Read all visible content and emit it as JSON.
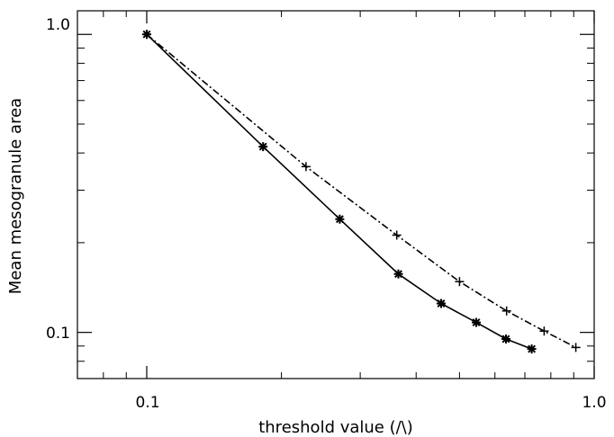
{
  "chart_data": {
    "type": "line",
    "xlabel": "threshold value (/\\)",
    "ylabel": "Mean mesogranule area",
    "xscale": "log",
    "yscale": "log",
    "xlim": [
      0.07,
      1.0
    ],
    "ylim": [
      0.07,
      1.2
    ],
    "x_ticks": [
      {
        "value": 0.1,
        "label": "0.1"
      },
      {
        "value": 1.0,
        "label": "1.0"
      }
    ],
    "y_ticks": [
      {
        "value": 0.1,
        "label": "0.1"
      },
      {
        "value": 1.0,
        "label": "1.0"
      }
    ],
    "grid": false,
    "series": [
      {
        "line_style": "solid",
        "marker": "asterisk",
        "color": "#000000",
        "x": [
          0.1,
          0.182,
          0.27,
          0.365,
          0.455,
          0.545,
          0.635,
          0.725
        ],
        "y": [
          1.0,
          0.42,
          0.24,
          0.157,
          0.125,
          0.108,
          0.095,
          0.088
        ]
      },
      {
        "line_style": "dash-dot",
        "marker": "plus",
        "color": "#000000",
        "x": [
          0.1,
          0.227,
          0.362,
          0.5,
          0.637,
          0.773,
          0.91
        ],
        "y": [
          1.0,
          0.36,
          0.212,
          0.148,
          0.118,
          0.101,
          0.089
        ]
      }
    ]
  }
}
